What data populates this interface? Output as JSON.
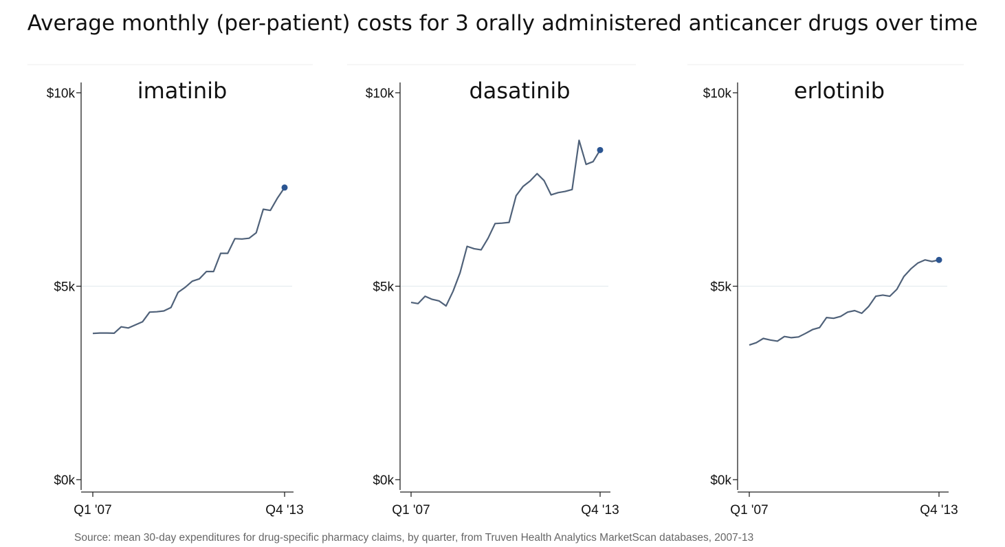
{
  "title": "Average monthly (per-patient) costs for 3 orally administered anticancer drugs over time",
  "source": "Source: mean 30-day expenditures for drug-specific pharmacy claims, by quarter, from Truven Health Analytics MarketScan databases, 2007-13",
  "colors": {
    "line": "#4f6179",
    "end_marker": "#2b5592",
    "grid": "#e6ecef",
    "axis": "#222222"
  },
  "chart_data": [
    {
      "type": "line",
      "title": "imatinib",
      "xlabel": "",
      "ylabel": "",
      "x_tick_labels": [
        "Q1 '07",
        "Q4 '13"
      ],
      "y_ticks": [
        0,
        5000,
        10000
      ],
      "y_tick_labels": [
        "$0k",
        "$5k",
        "$10k"
      ],
      "ylim": [
        0,
        10000
      ],
      "gridlines": [
        5000
      ],
      "quarters": 28,
      "values": [
        3780,
        3790,
        3790,
        3785,
        3950,
        3920,
        4000,
        4080,
        4330,
        4340,
        4360,
        4450,
        4840,
        4970,
        5130,
        5190,
        5380,
        5380,
        5850,
        5850,
        6230,
        6220,
        6240,
        6380,
        6990,
        6960,
        7280,
        7550
      ]
    },
    {
      "type": "line",
      "title": "dasatinib",
      "xlabel": "",
      "ylabel": "",
      "x_tick_labels": [
        "Q1 '07",
        "Q4 '13"
      ],
      "y_ticks": [
        0,
        5000,
        10000
      ],
      "y_tick_labels": [
        "$0k",
        "$5k",
        "$10k"
      ],
      "ylim": [
        0,
        10000
      ],
      "gridlines": [
        5000
      ],
      "quarters": 28,
      "values": [
        4580,
        4550,
        4740,
        4660,
        4620,
        4490,
        4870,
        5350,
        6030,
        5970,
        5940,
        6240,
        6620,
        6630,
        6650,
        7340,
        7580,
        7720,
        7910,
        7730,
        7360,
        7420,
        7450,
        7500,
        8770,
        8150,
        8220,
        8520
      ]
    },
    {
      "type": "line",
      "title": "erlotinib",
      "xlabel": "",
      "ylabel": "",
      "x_tick_labels": [
        "Q1 '07",
        "Q4 '13"
      ],
      "y_ticks": [
        0,
        5000,
        10000
      ],
      "y_tick_labels": [
        "$0k",
        "$5k",
        "$10k"
      ],
      "ylim": [
        0,
        10000
      ],
      "gridlines": [
        5000
      ],
      "quarters": 28,
      "values": [
        3480,
        3540,
        3650,
        3610,
        3580,
        3700,
        3670,
        3690,
        3780,
        3880,
        3930,
        4190,
        4170,
        4220,
        4330,
        4370,
        4300,
        4480,
        4740,
        4770,
        4740,
        4920,
        5250,
        5450,
        5600,
        5680,
        5640,
        5680
      ]
    }
  ]
}
